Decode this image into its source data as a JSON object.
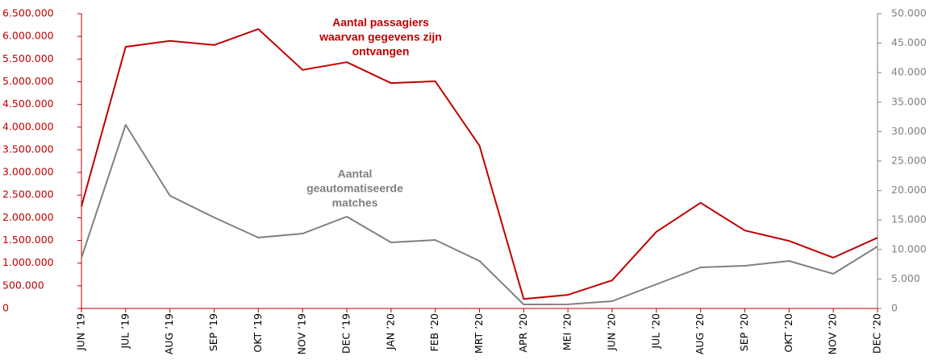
{
  "chart_data": {
    "type": "line",
    "categories": [
      "JUN ’19",
      "JUL ’19",
      "AUG ’19",
      "SEP ’19",
      "OKT ’19",
      "NOV ’19",
      "DEC ’19",
      "JAN ’20",
      "FEB ’20",
      "MRT ’20",
      "APR ’20",
      "MEI ’20",
      "JUN ’20",
      "JUL ’20",
      "AUG ’20",
      "SEP ’20",
      "OKT ’20",
      "NOV ’20",
      "DEC ’20"
    ],
    "series": [
      {
        "name": "Aantal passagiers waarvan gegevens zijn ontvangen",
        "color": "#c00000",
        "axis": "y",
        "values": [
          2250000,
          5770000,
          5900000,
          5810000,
          6160000,
          5260000,
          5430000,
          4970000,
          5010000,
          3590000,
          210000,
          300000,
          620000,
          1690000,
          2330000,
          1720000,
          1490000,
          1120000,
          1560000
        ]
      },
      {
        "name": "Aantal geautomatiseerde matches",
        "color": "#808080",
        "axis": "y2",
        "values": [
          8600,
          31150,
          19130,
          15440,
          12020,
          12700,
          15570,
          11200,
          11610,
          8060,
          680,
          700,
          1230,
          4100,
          6970,
          7240,
          8060,
          5870,
          10520
        ]
      }
    ],
    "annotations": [
      {
        "lines": [
          "Aantal passagiers",
          "waarvan gegevens zijn",
          "ontvangen"
        ],
        "color": "#c00000"
      },
      {
        "lines": [
          "Aantal",
          "geautomatiseerde",
          "matches"
        ],
        "color": "#808080"
      }
    ],
    "ylim": [
      0,
      6500000
    ],
    "yticks": [
      0,
      {
        "value": 500000,
        "label": "500.000"
      },
      {
        "value": 1000000,
        "label": "1.000.000"
      },
      {
        "value": 1500000,
        "label": "1.500.000"
      },
      {
        "value": 2000000,
        "label": "2.000.000"
      },
      {
        "value": 2500000,
        "label": "2.500.000"
      },
      {
        "value": 3000000,
        "label": "3.000.000"
      },
      {
        "value": 3500000,
        "label": "3.500.000"
      },
      {
        "value": 4000000,
        "label": "4.000.000"
      },
      {
        "value": 4500000,
        "label": "4.500.000"
      },
      {
        "value": 5000000,
        "label": "5.000.000"
      },
      {
        "value": 5500000,
        "label": "5.500.000"
      },
      {
        "value": 6000000,
        "label": "6.000.000"
      },
      {
        "value": 6500000,
        "label": "6.500.000"
      }
    ],
    "y2lim": [
      0,
      50000
    ],
    "y2ticks": [
      0,
      {
        "value": 5000,
        "label": "5.000"
      },
      {
        "value": 10000,
        "label": "10.000"
      },
      {
        "value": 15000,
        "label": "15.000"
      },
      {
        "value": 20000,
        "label": "20.000"
      },
      {
        "value": 25000,
        "label": "25.000"
      },
      {
        "value": 30000,
        "label": "30.000"
      },
      {
        "value": 35000,
        "label": "35.000"
      },
      {
        "value": 40000,
        "label": "40.000"
      },
      {
        "value": 45000,
        "label": "45.000"
      },
      {
        "value": 50000,
        "label": "50.000"
      }
    ],
    "grid": false
  }
}
